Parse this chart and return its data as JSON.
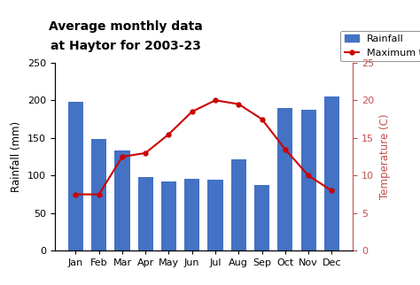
{
  "months": [
    "Jan",
    "Feb",
    "Mar",
    "Apr",
    "May",
    "Jun",
    "Jul",
    "Aug",
    "Sep",
    "Oct",
    "Nov",
    "Dec"
  ],
  "rainfall": [
    198,
    149,
    133,
    98,
    92,
    96,
    95,
    122,
    87,
    190,
    187,
    205
  ],
  "temperature": [
    7.5,
    7.5,
    12.5,
    13.0,
    15.5,
    18.5,
    20.0,
    19.5,
    17.5,
    13.5,
    10.0,
    8.0
  ],
  "bar_color": "#4472C4",
  "line_color": "#CC0000",
  "right_axis_color": "#C0504D",
  "title_line1": "Average monthly data",
  "title_line2": "at Haytor for 2003-23",
  "ylabel_left": "Rainfall (mm)",
  "ylabel_right": "Temperature (C)",
  "ylim_left": [
    0,
    250
  ],
  "ylim_right": [
    0.0,
    25.0
  ],
  "yticks_left": [
    0,
    50,
    100,
    150,
    200,
    250
  ],
  "yticks_right": [
    0.0,
    5.0,
    10.0,
    15.0,
    20.0,
    25.0
  ],
  "legend_rainfall": "Rainfall",
  "legend_temp": "Maximum temperature",
  "title_fontsize": 10,
  "label_fontsize": 8.5,
  "tick_fontsize": 8,
  "legend_fontsize": 8,
  "background_color": "#FFFFFF"
}
